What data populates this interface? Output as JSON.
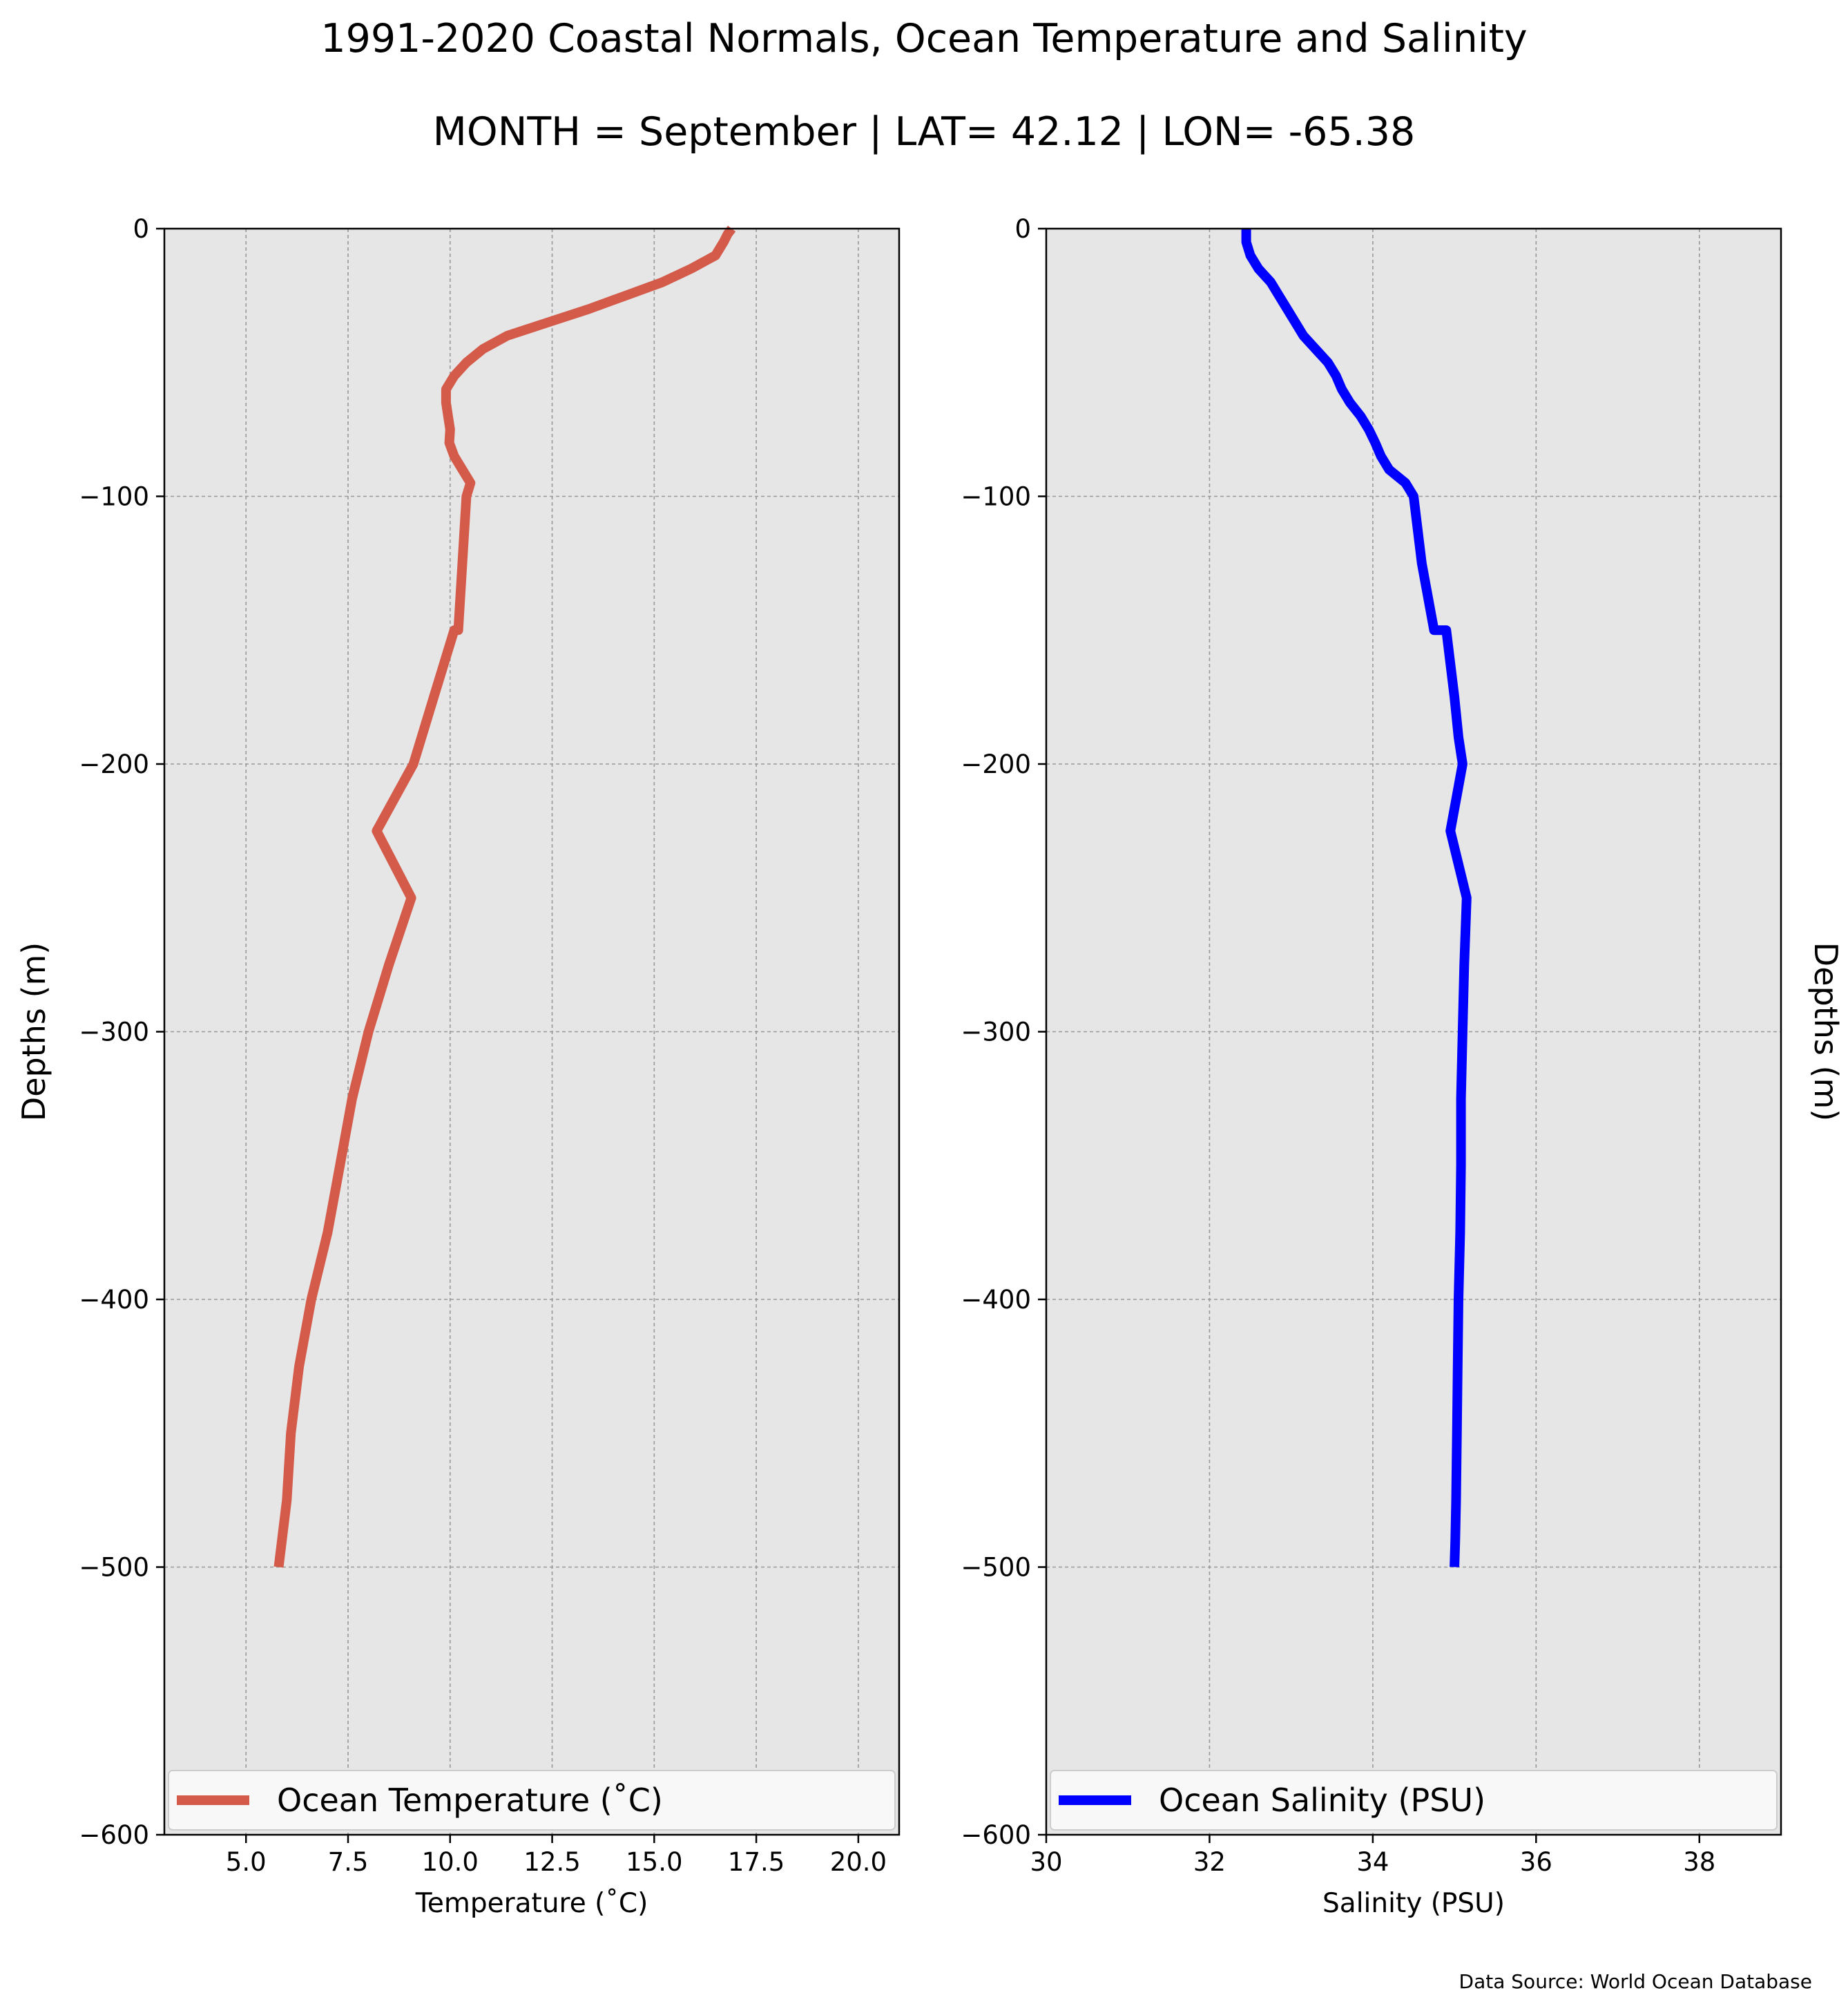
{
  "title": "1991-2020 Coastal Normals, Ocean Temperature and Salinity",
  "subtitle": "MONTH = September | LAT= 42.12 | LON= -65.38",
  "source_note": "Data Source: World Ocean Database",
  "colors": {
    "temperature": "#d45a4a",
    "salinity": "#0000ff",
    "plot_background": "#e6e6e6",
    "grid": "#999999"
  },
  "chart_data": [
    {
      "type": "line",
      "xlabel": "Temperature (˚C)",
      "ylabel": "Depths (m)",
      "xlim": [
        3.0,
        21.0
      ],
      "ylim": [
        -600,
        0
      ],
      "xticks": [
        5.0,
        7.5,
        10.0,
        12.5,
        15.0,
        17.5,
        20.0
      ],
      "xtick_labels": [
        "5.0",
        "7.5",
        "10.0",
        "12.5",
        "15.0",
        "17.5",
        "20.0"
      ],
      "yticks": [
        0,
        -100,
        -200,
        -300,
        -400,
        -500,
        -600
      ],
      "ytick_labels": [
        "0",
        "−100",
        "−200",
        "−300",
        "−400",
        "−500",
        "−600"
      ],
      "ylabel_side": "left",
      "grid": true,
      "legend_position": "lower center",
      "series": [
        {
          "name": "Ocean Temperature (˚C)",
          "color": "#d45a4a",
          "x": [
            16.9,
            16.8,
            16.7,
            16.5,
            15.9,
            15.2,
            14.3,
            13.4,
            12.4,
            11.4,
            10.8,
            10.4,
            10.1,
            9.9,
            9.9,
            9.95,
            10.0,
            9.98,
            10.1,
            10.3,
            10.5,
            10.4,
            10.3,
            10.2,
            10.1,
            9.6,
            9.3,
            9.1,
            8.2,
            9.05,
            8.5,
            8.0,
            7.6,
            7.3,
            7.0,
            6.6,
            6.3,
            6.1,
            6.0,
            5.8
          ],
          "y": [
            0,
            -2,
            -5,
            -10,
            -15,
            -20,
            -25,
            -30,
            -35,
            -40,
            -45,
            -50,
            -55,
            -60,
            -65,
            -70,
            -75,
            -80,
            -85,
            -90,
            -95,
            -100,
            -125,
            -150,
            -150,
            -175,
            -190,
            -200,
            -225,
            -250,
            -275,
            -300,
            -325,
            -350,
            -375,
            -400,
            -425,
            -450,
            -475,
            -500
          ]
        }
      ]
    },
    {
      "type": "line",
      "xlabel": "Salinity (PSU)",
      "ylabel": "Depths (m)",
      "xlim": [
        30,
        39
      ],
      "ylim": [
        -600,
        0
      ],
      "xticks": [
        30,
        32,
        34,
        36,
        38
      ],
      "xtick_labels": [
        "30",
        "32",
        "34",
        "36",
        "38"
      ],
      "yticks": [
        0,
        -100,
        -200,
        -300,
        -400,
        -500,
        -600
      ],
      "ytick_labels": [
        "0",
        "−100",
        "−200",
        "−300",
        "−400",
        "−500",
        "−600"
      ],
      "ylabel_side": "right",
      "grid": true,
      "legend_position": "lower center",
      "series": [
        {
          "name": "Ocean Salinity (PSU)",
          "color": "#0000ff",
          "x": [
            32.45,
            32.45,
            32.5,
            32.6,
            32.75,
            32.85,
            32.95,
            33.05,
            33.15,
            33.3,
            33.45,
            33.55,
            33.62,
            33.72,
            33.85,
            33.95,
            34.03,
            34.1,
            34.2,
            34.4,
            34.5,
            34.6,
            34.75,
            34.9,
            35.0,
            35.05,
            35.1,
            34.95,
            35.15,
            35.12,
            35.1,
            35.08,
            35.08,
            35.07,
            35.05,
            35.04,
            35.03,
            35.02,
            35.01,
            35.0
          ],
          "y": [
            0,
            -5,
            -10,
            -15,
            -20,
            -25,
            -30,
            -35,
            -40,
            -45,
            -50,
            -55,
            -60,
            -65,
            -70,
            -75,
            -80,
            -85,
            -90,
            -95,
            -100,
            -125,
            -150,
            -150,
            -175,
            -190,
            -200,
            -225,
            -250,
            -275,
            -300,
            -325,
            -350,
            -375,
            -400,
            -425,
            -450,
            -475,
            -490,
            -500
          ]
        }
      ]
    }
  ]
}
